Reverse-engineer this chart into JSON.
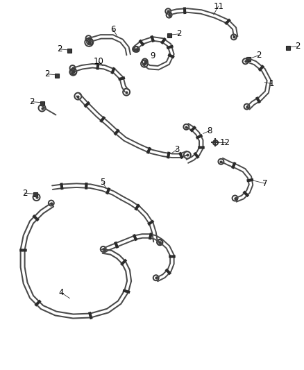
{
  "background_color": "#ffffff",
  "line_color": "#4a4a4a",
  "text_color": "#000000",
  "fig_width": 4.38,
  "fig_height": 5.33,
  "dpi": 100
}
